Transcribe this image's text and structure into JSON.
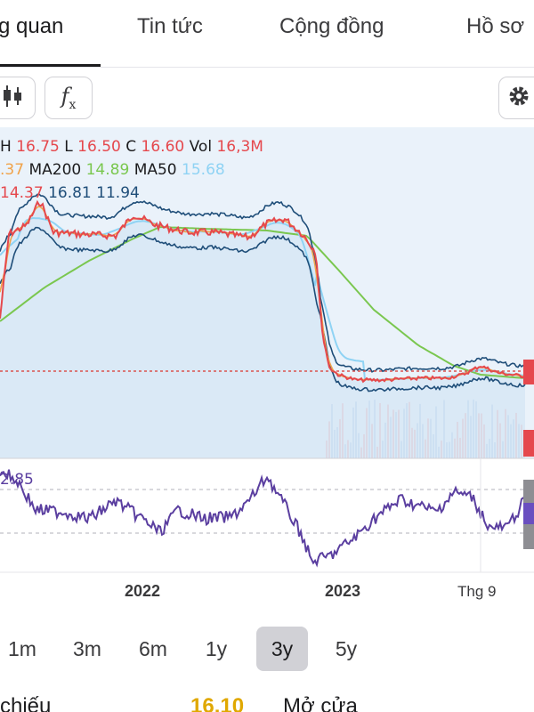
{
  "tabs": [
    {
      "label": "g quan"
    },
    {
      "label": "Tin tức"
    },
    {
      "label": "Cộng đồng"
    },
    {
      "label": "Hồ sơ"
    }
  ],
  "toolbar": {
    "indicator_label": "f",
    "indicator_sub": "x",
    "icons": [
      "candlestick-icon",
      "function-icon",
      "gear-icon"
    ]
  },
  "legend": {
    "ohlc": {
      "h_label": "H",
      "h": "16.75",
      "l_label": "L",
      "l": "16.50",
      "c_label": "C",
      "c": "16.60",
      "vol_label": "Vol",
      "vol": "16,3M"
    },
    "ma": {
      "ma_prefix": ".37",
      "ma200_label": "MA200",
      "ma200": "14.89",
      "ma50_label": "MA50",
      "ma50": "15.68"
    },
    "bb": {
      "v1": "14.37",
      "v2": "16.81",
      "v3": "11.94"
    },
    "rsi": "2.85"
  },
  "colors": {
    "price": "#e5484d",
    "band": "#1f4e79",
    "ma200": "#7ac74f",
    "ma50": "#8fd3f4",
    "ma_orange": "#f0a34a",
    "rsi": "#5b3fa0",
    "ref_line": "#d9534f"
  },
  "x_axis": [
    "2022",
    "2023",
    "Thg 9"
  ],
  "ranges": [
    "1m",
    "3m",
    "6m",
    "1y",
    "3y",
    "5y"
  ],
  "active_range": "3y",
  "bottom": {
    "left_label": "chiếu",
    "value": "16.10",
    "right_label": "Mở cửa"
  }
}
